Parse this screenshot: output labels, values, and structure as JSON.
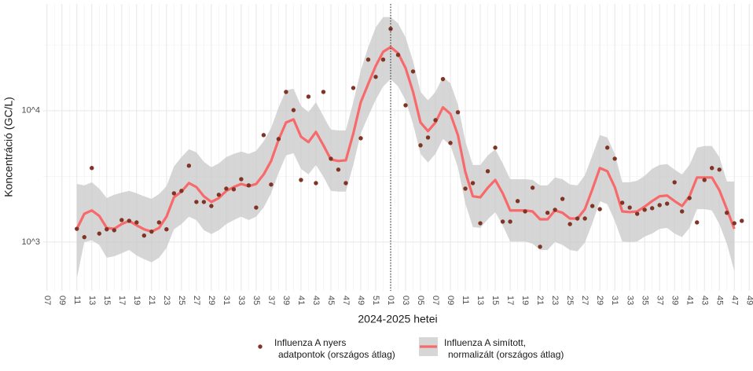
{
  "chart_data": {
    "type": "line",
    "x_label": "2024-2025 hetei",
    "y_label": "Koncentráció (GC/L)",
    "yscale": "log",
    "ylim": [
      425,
      65000
    ],
    "yticks": [
      {
        "value": 1000,
        "label": "10^3"
      },
      {
        "value": 10000,
        "label": "10^4"
      }
    ],
    "grid": true,
    "legend": "bottom",
    "vline": "01",
    "categories": [
      "07",
      null,
      "09",
      null,
      "11",
      null,
      "13",
      null,
      "15",
      null,
      "17",
      null,
      "19",
      null,
      "21",
      null,
      "23",
      null,
      "25",
      null,
      "27",
      null,
      "29",
      null,
      "31",
      null,
      "33",
      null,
      "35",
      null,
      "37",
      null,
      "39",
      null,
      "41",
      null,
      "43",
      null,
      "45",
      null,
      "47",
      null,
      "49",
      null,
      "51",
      null,
      "01",
      null,
      "03",
      null,
      "05",
      null,
      "07",
      null,
      "09",
      null,
      "11",
      null,
      "13",
      null,
      "15",
      null,
      "17",
      null,
      "19",
      null,
      "21",
      null,
      "23",
      null,
      "25",
      null,
      "27",
      null,
      "29",
      null,
      "31",
      null,
      "33",
      null,
      "35",
      null,
      "37",
      null,
      "39",
      null,
      "41",
      null,
      "43",
      null,
      "45",
      null,
      "47",
      null,
      "49"
    ],
    "series": [
      {
        "name": "Influenza A nyers\nadatpontok (országos átlag)",
        "type": "scatter",
        "color": "#7f3424",
        "values": [
          null,
          null,
          null,
          null,
          1260,
          1090,
          3660,
          1160,
          1250,
          1230,
          1470,
          1450,
          1410,
          1120,
          1200,
          1410,
          1250,
          2350,
          2450,
          3810,
          2020,
          2020,
          1880,
          2290,
          2550,
          2520,
          3010,
          2700,
          1830,
          6520,
          2740,
          6090,
          13900,
          10100,
          2970,
          12800,
          2810,
          13900,
          4310,
          3560,
          2810,
          14900,
          6170,
          24500,
          18100,
          24500,
          42000,
          26600,
          11000,
          19900,
          5450,
          6250,
          8470,
          17400,
          5680,
          9730,
          2550,
          2810,
          1390,
          3460,
          5230,
          1430,
          1430,
          2050,
          1710,
          2590,
          920,
          1670,
          1760,
          2130,
          1370,
          1510,
          1510,
          1880,
          1780,
          5230,
          4310,
          1990,
          1830,
          1640,
          1760,
          1810,
          1910,
          1960,
          2850,
          1710,
          2160,
          1410,
          2970,
          3660,
          3560,
          1670,
          1390,
          1450,
          null
        ]
      },
      {
        "name": "Influenza A simított,\nnormalizált (országos átlag)",
        "type": "line",
        "color": "#f8696b",
        "band_color": "#c8c8c8",
        "values": [
          null,
          null,
          null,
          null,
          1260,
          1640,
          1740,
          1580,
          1280,
          1260,
          1370,
          1450,
          1340,
          1250,
          1200,
          1280,
          1560,
          2190,
          2420,
          2810,
          2620,
          2230,
          2020,
          2160,
          2450,
          2620,
          2770,
          2660,
          2770,
          3270,
          4140,
          6000,
          8130,
          8590,
          6340,
          5760,
          6890,
          5450,
          4250,
          4140,
          4190,
          6700,
          11600,
          16000,
          21900,
          28100,
          30500,
          27400,
          21100,
          13900,
          8130,
          6990,
          8130,
          10600,
          9460,
          6520,
          3410,
          2230,
          2190,
          2590,
          2970,
          2350,
          1740,
          1740,
          1740,
          1710,
          1490,
          1490,
          1740,
          1670,
          1510,
          1510,
          1780,
          2520,
          3660,
          3460,
          2620,
          1710,
          1690,
          1710,
          1860,
          2050,
          2230,
          2260,
          2050,
          1880,
          2230,
          3100,
          3100,
          3100,
          2480,
          1780,
          1260,
          null,
          null
        ],
        "upper": [
          null,
          null,
          null,
          null,
          2770,
          2700,
          2850,
          2550,
          2160,
          2290,
          2380,
          2450,
          2350,
          2230,
          2130,
          2320,
          2660,
          3760,
          4430,
          5090,
          4820,
          4080,
          3710,
          3970,
          4430,
          4690,
          4890,
          4690,
          4950,
          5840,
          7380,
          10600,
          14300,
          14700,
          10900,
          9730,
          11600,
          9080,
          7180,
          7080,
          7080,
          11600,
          20200,
          30500,
          43100,
          51600,
          51600,
          46200,
          36100,
          23800,
          13900,
          12000,
          13900,
          18100,
          16200,
          11200,
          5840,
          3860,
          3860,
          4560,
          5090,
          3970,
          3010,
          3010,
          3010,
          2970,
          2700,
          2700,
          3100,
          3010,
          2740,
          2700,
          3230,
          4560,
          6520,
          6250,
          4690,
          2850,
          2850,
          2930,
          3190,
          3610,
          3860,
          3920,
          3560,
          3270,
          3860,
          5230,
          5380,
          5380,
          4430,
          2890,
          2890,
          null,
          null
        ],
        "lower": [
          null,
          null,
          null,
          null,
          530,
          1000,
          1030,
          950,
          760,
          780,
          820,
          870,
          790,
          740,
          700,
          760,
          900,
          1250,
          1370,
          1560,
          1470,
          1230,
          1150,
          1230,
          1370,
          1470,
          1560,
          1470,
          1560,
          1830,
          2350,
          3360,
          4560,
          4750,
          3610,
          3270,
          3860,
          3140,
          2450,
          2420,
          2420,
          3860,
          6700,
          9080,
          12100,
          15300,
          17400,
          15300,
          12000,
          7910,
          4690,
          4030,
          4690,
          6090,
          5450,
          3710,
          1960,
          1300,
          1280,
          1490,
          1690,
          1340,
          1010,
          1010,
          1010,
          970,
          870,
          870,
          1000,
          950,
          870,
          850,
          990,
          1390,
          2050,
          1940,
          1450,
          1010,
          1000,
          1010,
          1100,
          1160,
          1260,
          1280,
          1160,
          1090,
          1280,
          1780,
          1780,
          1740,
          1370,
          970,
          600,
          null,
          null
        ]
      }
    ]
  }
}
